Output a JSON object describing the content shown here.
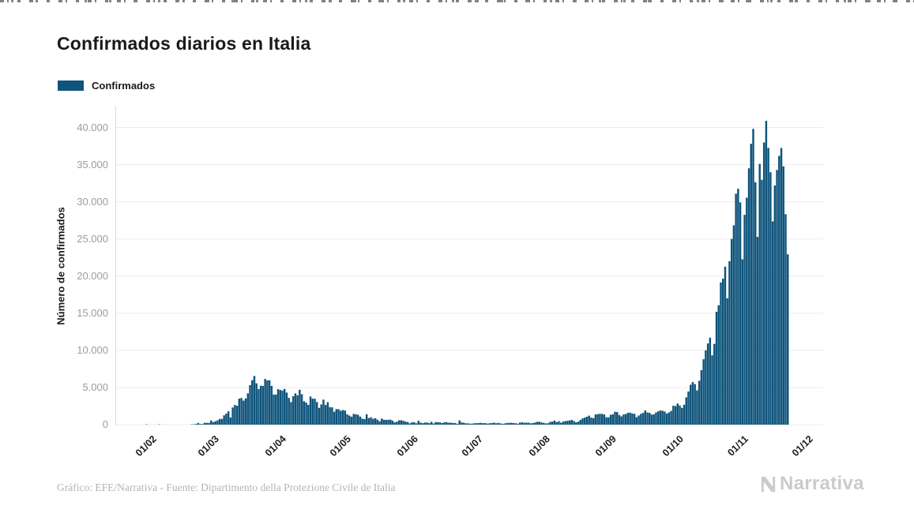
{
  "page": {
    "title": "Confirmados diarios en Italia"
  },
  "legend": {
    "label": "Confirmados"
  },
  "colors": {
    "bar": "#0e547b",
    "grid": "#ececec",
    "axis_line": "#d9d9d9",
    "y_tick_text": "#9c9c9c",
    "x_tick_text": "#1c1c1a",
    "dark_text": "#19191a",
    "footer_text": "#b4b4b4",
    "logo_gray": "#cbcbcb"
  },
  "y_axis": {
    "title": "Número de confirmados",
    "ticks": [
      {
        "label": "0",
        "value": 0
      },
      {
        "label": "5.000",
        "value": 5000
      },
      {
        "label": "10.000",
        "value": 10000
      },
      {
        "label": "15.000",
        "value": 15000
      },
      {
        "label": "20.000",
        "value": 20000
      },
      {
        "label": "25.000",
        "value": 25000
      },
      {
        "label": "30.000",
        "value": 30000
      },
      {
        "label": "35.000",
        "value": 35000
      },
      {
        "label": "40.000",
        "value": 40000
      }
    ]
  },
  "x_axis": {
    "ticks": [
      {
        "label": "01/02",
        "day": 0
      },
      {
        "label": "01/03",
        "day": 29
      },
      {
        "label": "01/04",
        "day": 60
      },
      {
        "label": "01/05",
        "day": 90
      },
      {
        "label": "01/06",
        "day": 121
      },
      {
        "label": "01/07",
        "day": 151
      },
      {
        "label": "01/08",
        "day": 182
      },
      {
        "label": "01/09",
        "day": 213
      },
      {
        "label": "01/10",
        "day": 244
      },
      {
        "label": "01/11",
        "day": 274
      },
      {
        "label": "01/12",
        "day": 304
      }
    ]
  },
  "footer": {
    "credit": "Gráfico: EFE/Narrativa - Fuente: Dipartimento della Protezione Civile de Italia"
  },
  "logo": {
    "text": "Narrativa"
  },
  "chart_data": {
    "type": "bar",
    "title": "Confirmados diarios en Italia",
    "xlabel": "",
    "ylabel": "Número de confirmados",
    "series_name": "Confirmados",
    "ylim": [
      0,
      42800
    ],
    "grid": true,
    "legend_position": "top-left",
    "start_date": "31/01/2020",
    "end_date": "23/11/2020",
    "frequency": "daily",
    "values": [
      3,
      0,
      0,
      0,
      0,
      0,
      1,
      0,
      0,
      0,
      0,
      0,
      0,
      0,
      0,
      0,
      0,
      0,
      0,
      0,
      0,
      17,
      42,
      93,
      221,
      93,
      78,
      250,
      238,
      240,
      566,
      342,
      466,
      587,
      769,
      778,
      1247,
      1492,
      1797,
      977,
      2313,
      2651,
      2547,
      3497,
      3590,
      3233,
      3526,
      4207,
      5322,
      5986,
      6557,
      5560,
      4789,
      5249,
      5210,
      6153,
      5959,
      5974,
      5217,
      4050,
      4053,
      4782,
      4668,
      4585,
      4805,
      4316,
      3599,
      3039,
      3836,
      4204,
      3951,
      4694,
      4092,
      3153,
      2972,
      2667,
      3786,
      3493,
      3491,
      3047,
      2256,
      2729,
      3370,
      2646,
      3021,
      2357,
      2324,
      1739,
      2091,
      2086,
      1872,
      1965,
      1900,
      1389,
      1221,
      1075,
      1444,
      1401,
      1327,
      1083,
      802,
      744,
      1402,
      888,
      992,
      789,
      875,
      675,
      451,
      813,
      665,
      642,
      652,
      669,
      531,
      300,
      397,
      584,
      593,
      516,
      416,
      355,
      178,
      318,
      321,
      177,
      518,
      270,
      197,
      280,
      283,
      202,
      379,
      163,
      346,
      338,
      301,
      210,
      329,
      331,
      251,
      264,
      224,
      218,
      113,
      577,
      296,
      255,
      175,
      174,
      126,
      142,
      187,
      201,
      223,
      235,
      192,
      208,
      137,
      193,
      214,
      276,
      188,
      234,
      169,
      114,
      162,
      230,
      233,
      249,
      218,
      190,
      128,
      282,
      306,
      252,
      275,
      255,
      170,
      212,
      289,
      386,
      379,
      295,
      239,
      159,
      190,
      384,
      402,
      552,
      347,
      463,
      259,
      412,
      481,
      522,
      574,
      629,
      479,
      320,
      403,
      642,
      840,
      947,
      1071,
      1210,
      953,
      878,
      1367,
      1411,
      1462,
      1444,
      1365,
      996,
      978,
      1326,
      1397,
      1733,
      1694,
      1297,
      1108,
      1370,
      1434,
      1597,
      1616,
      1501,
      1458,
      1008,
      1229,
      1452,
      1585,
      1907,
      1638,
      1587,
      1350,
      1392,
      1640,
      1786,
      1912,
      1869,
      1766,
      1494,
      1648,
      1851,
      2548,
      2499,
      2844,
      2578,
      2257,
      2677,
      3678,
      4458,
      5372,
      5724,
      5456,
      4619,
      5901,
      7332,
      8804,
      10010,
      10925,
      11705,
      9338,
      10874,
      15199,
      16079,
      19143,
      19644,
      21273,
      17012,
      21994,
      24991,
      26831,
      31084,
      31758,
      29907,
      22253,
      28244,
      30550,
      34505,
      37809,
      39811,
      32616,
      25271,
      35098,
      32961,
      37978,
      40902,
      37255,
      33979,
      27354,
      32191,
      34283,
      36176,
      37242,
      34767,
      28337,
      22930
    ]
  }
}
